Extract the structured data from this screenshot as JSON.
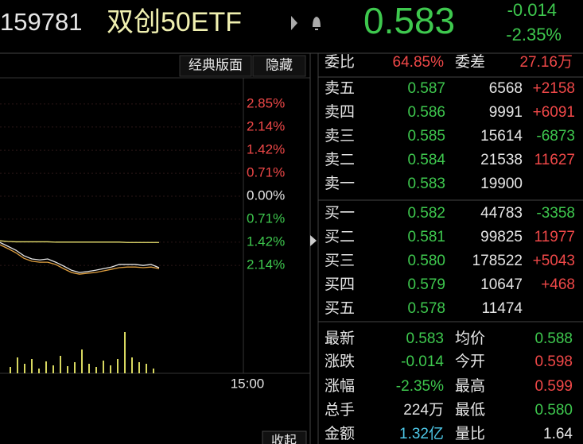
{
  "header": {
    "code": "159781",
    "name": "双创50ETF",
    "price": "0.583",
    "change": "-0.014",
    "change_pct": "-2.35%"
  },
  "toolbar": {
    "layout_button": "经典版面",
    "hide_button": "隐藏",
    "collapse_button": "收起"
  },
  "chart_data": [
    {
      "type": "line",
      "ylim": [
        -3.56,
        3.56
      ],
      "yticks": [
        {
          "value": 2.85,
          "label": "2.85%"
        },
        {
          "value": 2.14,
          "label": "2.14%"
        },
        {
          "value": 1.42,
          "label": "1.42%"
        },
        {
          "value": 0.71,
          "label": "0.71%"
        },
        {
          "value": 0,
          "label": "0.00%"
        },
        {
          "value": -0.71,
          "label": "0.71%"
        },
        {
          "value": -1.42,
          "label": "1.42%"
        },
        {
          "value": -2.14,
          "label": "2.14%"
        }
      ],
      "time_label": "15:00",
      "grid": true,
      "series": [
        {
          "color": "#e8e070",
          "values": [
            -1.38,
            -1.4,
            -1.41,
            -1.41,
            -1.41,
            -1.41,
            -1.41,
            -1.42,
            -1.42,
            -1.42,
            -1.42,
            -1.42,
            -1.42,
            -1.42,
            -1.42,
            -1.42,
            -1.43,
            -1.43,
            -1.43,
            -1.43,
            -1.43
          ]
        },
        {
          "color": "#e0a040",
          "values": [
            -1.5,
            -1.62,
            -1.75,
            -1.92,
            -2.01,
            -2.04,
            -2.04,
            -2.11,
            -2.24,
            -2.36,
            -2.41,
            -2.38,
            -2.36,
            -2.31,
            -2.26,
            -2.21,
            -2.19,
            -2.19,
            -2.21,
            -2.19,
            -2.24
          ]
        },
        {
          "color": "#e6e6e6",
          "values": [
            -1.43,
            -1.55,
            -1.67,
            -1.84,
            -1.94,
            -1.97,
            -1.94,
            -2.04,
            -2.16,
            -2.29,
            -2.36,
            -2.33,
            -2.29,
            -2.24,
            -2.19,
            -2.11,
            -2.11,
            -2.11,
            -2.14,
            -2.11,
            -2.21
          ]
        }
      ]
    },
    {
      "type": "bar",
      "ylim": [
        0,
        70
      ],
      "color": "#d8d860",
      "values": [
        8,
        20,
        12,
        18,
        6,
        15,
        10,
        22,
        9,
        14,
        30,
        12,
        8,
        16,
        10,
        18,
        52,
        20,
        14,
        12,
        6
      ]
    }
  ],
  "order_book": {
    "ratio_label": "委比",
    "ratio": "64.85%",
    "diff_label": "委差",
    "diff": "27.16万",
    "asks": [
      [
        "卖五",
        "0.587",
        "6568",
        "+2158"
      ],
      [
        "卖四",
        "0.586",
        "9991",
        "+6091"
      ],
      [
        "卖三",
        "0.585",
        "15614",
        "-6873"
      ],
      [
        "卖二",
        "0.584",
        "21538",
        "11627"
      ],
      [
        "卖一",
        "0.583",
        "19900"
      ]
    ],
    "bids": [
      [
        "买一",
        "0.582",
        "44783",
        "-3358"
      ],
      [
        "买二",
        "0.581",
        "99825",
        "11977"
      ],
      [
        "买三",
        "0.580",
        "178522",
        "+5043"
      ],
      [
        "买四",
        "0.579",
        "10647",
        "+468"
      ],
      [
        "买五",
        "0.578",
        "11474"
      ]
    ]
  },
  "stats": [
    [
      "最新",
      "0.583",
      "均价",
      "0.588"
    ],
    [
      "涨跌",
      "-0.014",
      "今开",
      "0.598"
    ],
    [
      "涨幅",
      "-2.35%",
      "最高",
      "0.599"
    ],
    [
      "总手",
      "224万",
      "最低",
      "0.580"
    ],
    [
      "金额",
      "1.32亿",
      "量比",
      "1.64"
    ]
  ]
}
